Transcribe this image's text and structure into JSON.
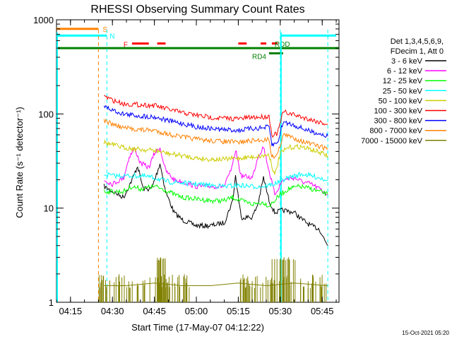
{
  "chart_data": {
    "type": "line",
    "title": "RHESSI Observing Summary Count Rates",
    "xlabel": "Start Time (17-May-07 04:12:22)",
    "ylabel": "Count Rate (s⁻¹ detector⁻¹)",
    "y_scale": "log",
    "ylim": [
      1,
      1000
    ],
    "xlim": [
      "04:10",
      "05:51"
    ],
    "x_ticks": [
      "04:15",
      "04:30",
      "04:45",
      "05:00",
      "05:15",
      "05:30",
      "05:45"
    ],
    "y_ticks": [
      "1",
      "10",
      "100",
      "1000"
    ],
    "grid": false,
    "legend_position": "right",
    "legend_header": [
      "Det 1,3,4,5,6,9,",
      "FDecim 1, Att 0"
    ],
    "timestamp": "15-Oct-2021 05:20",
    "series": [
      {
        "name": "3 - 6 keV",
        "color": "#000000",
        "points": [
          [
            "04:27",
            17
          ],
          [
            "04:30",
            15
          ],
          [
            "04:34",
            13
          ],
          [
            "04:37",
            20
          ],
          [
            "04:39",
            28
          ],
          [
            "04:41",
            16
          ],
          [
            "04:44",
            16
          ],
          [
            "04:46",
            24
          ],
          [
            "04:47",
            30
          ],
          [
            "04:49",
            15
          ],
          [
            "04:52",
            9
          ],
          [
            "04:55",
            7.5
          ],
          [
            "05:00",
            6.5
          ],
          [
            "05:05",
            6.5
          ],
          [
            "05:10",
            7
          ],
          [
            "05:13",
            12
          ],
          [
            "05:14",
            22
          ],
          [
            "05:16",
            8
          ],
          [
            "05:20",
            8
          ],
          [
            "05:22",
            11
          ],
          [
            "05:24",
            21
          ],
          [
            "05:26",
            12
          ],
          [
            "05:28",
            9
          ],
          [
            "05:31",
            9.5
          ],
          [
            "05:35",
            9
          ],
          [
            "05:38",
            7.5
          ],
          [
            "05:41",
            6.5
          ],
          [
            "05:44",
            6
          ],
          [
            "05:46",
            4.5
          ],
          [
            "05:47",
            4
          ]
        ]
      },
      {
        "name": "6 - 12 keV",
        "color": "#ff00ff",
        "points": [
          [
            "04:27",
            20
          ],
          [
            "04:30",
            18
          ],
          [
            "04:34",
            21
          ],
          [
            "04:36",
            35
          ],
          [
            "04:38",
            43
          ],
          [
            "04:40",
            30
          ],
          [
            "04:43",
            27
          ],
          [
            "04:45",
            38
          ],
          [
            "04:47",
            44
          ],
          [
            "04:49",
            25
          ],
          [
            "04:52",
            20
          ],
          [
            "04:55",
            19
          ],
          [
            "05:00",
            17
          ],
          [
            "05:05",
            17
          ],
          [
            "05:10",
            17
          ],
          [
            "05:13",
            28
          ],
          [
            "05:14",
            42
          ],
          [
            "05:16",
            22
          ],
          [
            "05:20",
            21
          ],
          [
            "05:22",
            35
          ],
          [
            "05:24",
            45
          ],
          [
            "05:26",
            25
          ],
          [
            "05:28",
            14
          ],
          [
            "05:31",
            20
          ],
          [
            "05:35",
            21
          ],
          [
            "05:38",
            19
          ],
          [
            "05:41",
            18
          ],
          [
            "05:44",
            16
          ],
          [
            "05:47",
            14
          ]
        ]
      },
      {
        "name": "12 - 25 keV",
        "color": "#00ff00",
        "points": [
          [
            "04:27",
            15
          ],
          [
            "04:30",
            15
          ],
          [
            "04:34",
            15
          ],
          [
            "04:37",
            17
          ],
          [
            "04:40",
            16
          ],
          [
            "04:45",
            17
          ],
          [
            "04:48",
            16
          ],
          [
            "04:52",
            14
          ],
          [
            "04:55",
            13
          ],
          [
            "05:00",
            12.5
          ],
          [
            "05:05",
            12
          ],
          [
            "05:10",
            12
          ],
          [
            "05:13",
            13
          ],
          [
            "05:16",
            12
          ],
          [
            "05:20",
            11
          ],
          [
            "05:24",
            11.5
          ],
          [
            "05:26",
            10.5
          ],
          [
            "05:28",
            12
          ],
          [
            "05:30",
            14
          ],
          [
            "05:33",
            16
          ],
          [
            "05:37",
            17
          ],
          [
            "05:41",
            16
          ],
          [
            "05:44",
            15
          ],
          [
            "05:47",
            14
          ]
        ]
      },
      {
        "name": "25 - 50 keV",
        "color": "#00ffff",
        "points": [
          [
            "04:27",
            23
          ],
          [
            "04:30",
            22
          ],
          [
            "04:34",
            22
          ],
          [
            "04:40",
            22
          ],
          [
            "04:45",
            21
          ],
          [
            "04:50",
            19
          ],
          [
            "04:55",
            18.5
          ],
          [
            "05:00",
            18
          ],
          [
            "05:05",
            17.5
          ],
          [
            "05:10",
            17
          ],
          [
            "05:15",
            17.5
          ],
          [
            "05:20",
            17
          ],
          [
            "05:24",
            17
          ],
          [
            "05:26",
            17.5
          ],
          [
            "05:28",
            18
          ],
          [
            "05:31",
            20
          ],
          [
            "05:35",
            22
          ],
          [
            "05:38",
            23
          ],
          [
            "05:41",
            22
          ],
          [
            "05:44",
            21
          ],
          [
            "05:47",
            20
          ]
        ]
      },
      {
        "name": "50 - 100 keV",
        "color": "#cccc00",
        "points": [
          [
            "04:27",
            50
          ],
          [
            "04:30",
            47
          ],
          [
            "04:34",
            44
          ],
          [
            "04:40",
            42
          ],
          [
            "04:45",
            41
          ],
          [
            "04:50",
            38
          ],
          [
            "04:55",
            36
          ],
          [
            "05:00",
            34
          ],
          [
            "05:05",
            33
          ],
          [
            "05:10",
            33
          ],
          [
            "05:15",
            34
          ],
          [
            "05:20",
            35
          ],
          [
            "05:24",
            36
          ],
          [
            "05:26",
            37
          ],
          [
            "05:28",
            22
          ],
          [
            "05:30",
            38
          ],
          [
            "05:33",
            44
          ],
          [
            "05:37",
            45
          ],
          [
            "05:41",
            42
          ],
          [
            "05:44",
            39
          ],
          [
            "05:47",
            36
          ]
        ]
      },
      {
        "name": "100 - 300 keV",
        "color": "#ff0000",
        "points": [
          [
            "04:27",
            155
          ],
          [
            "04:30",
            140
          ],
          [
            "04:34",
            128
          ],
          [
            "04:40",
            125
          ],
          [
            "04:45",
            123
          ],
          [
            "04:50",
            112
          ],
          [
            "04:55",
            103
          ],
          [
            "05:00",
            97
          ],
          [
            "05:05",
            92
          ],
          [
            "05:10",
            90
          ],
          [
            "05:15",
            89
          ],
          [
            "05:20",
            92
          ],
          [
            "05:24",
            93
          ],
          [
            "05:26",
            95
          ],
          [
            "05:27",
            60
          ],
          [
            "05:29",
            62
          ],
          [
            "05:31",
            105
          ],
          [
            "05:34",
            100
          ],
          [
            "05:38",
            92
          ],
          [
            "05:41",
            87
          ],
          [
            "05:44",
            82
          ],
          [
            "05:47",
            78
          ]
        ]
      },
      {
        "name": "300 - 800 keV",
        "color": "#0000ff",
        "points": [
          [
            "04:27",
            120
          ],
          [
            "04:30",
            110
          ],
          [
            "04:34",
            100
          ],
          [
            "04:40",
            95
          ],
          [
            "04:45",
            93
          ],
          [
            "04:50",
            85
          ],
          [
            "04:55",
            79
          ],
          [
            "05:00",
            73
          ],
          [
            "05:05",
            70
          ],
          [
            "05:10",
            68
          ],
          [
            "05:15",
            67
          ],
          [
            "05:20",
            70
          ],
          [
            "05:24",
            71
          ],
          [
            "05:26",
            73
          ],
          [
            "05:27",
            47
          ],
          [
            "05:29",
            49
          ],
          [
            "05:31",
            82
          ],
          [
            "05:34",
            78
          ],
          [
            "05:38",
            70
          ],
          [
            "05:41",
            65
          ],
          [
            "05:44",
            62
          ],
          [
            "05:47",
            58
          ]
        ]
      },
      {
        "name": "800 - 7000 keV",
        "color": "#ff8000",
        "points": [
          [
            "04:27",
            85
          ],
          [
            "04:30",
            78
          ],
          [
            "04:34",
            71
          ],
          [
            "04:40",
            68
          ],
          [
            "04:45",
            67
          ],
          [
            "04:50",
            61
          ],
          [
            "04:55",
            57
          ],
          [
            "05:00",
            54
          ],
          [
            "05:05",
            52
          ],
          [
            "05:10",
            51
          ],
          [
            "05:15",
            50
          ],
          [
            "05:20",
            52
          ],
          [
            "05:24",
            53
          ],
          [
            "05:26",
            54
          ],
          [
            "05:27",
            35
          ],
          [
            "05:29",
            37
          ],
          [
            "05:31",
            60
          ],
          [
            "05:34",
            57
          ],
          [
            "05:38",
            51
          ],
          [
            "05:41",
            48
          ],
          [
            "05:44",
            45
          ],
          [
            "05:47",
            43
          ]
        ]
      },
      {
        "name": "7000 - 15000 keV",
        "color": "#808000",
        "points": [
          [
            "04:27",
            1.5
          ],
          [
            "04:35",
            1.5
          ],
          [
            "04:45",
            1.6
          ],
          [
            "04:55",
            1.5
          ],
          [
            "05:05",
            1.5
          ],
          [
            "05:15",
            1.6
          ],
          [
            "05:25",
            1.5
          ],
          [
            "05:35",
            1.6
          ],
          [
            "05:47",
            1.5
          ]
        ]
      }
    ],
    "flag_bars": [
      {
        "label": "S",
        "color": "#ff8000",
        "y": 800,
        "segments": [
          [
            "04:10",
            "04:25"
          ]
        ]
      },
      {
        "label": "N",
        "color": "#00ffff",
        "y": 680,
        "segments": [
          [
            "04:10",
            "04:28"
          ],
          [
            "05:30",
            "05:50"
          ]
        ]
      },
      {
        "label": "F",
        "color": "#ff0000",
        "y": 560,
        "segments": [
          [
            "04:37",
            "04:43"
          ],
          [
            "04:46",
            "04:49"
          ],
          [
            "05:15",
            "05:18"
          ],
          [
            "05:23",
            "05:25"
          ],
          [
            "05:27",
            "05:29"
          ]
        ]
      },
      {
        "label": "RDD",
        "color": "#008000",
        "y": 500,
        "segments": [
          [
            "04:10",
            "05:51"
          ]
        ]
      },
      {
        "label": "RD4",
        "color": "#008000",
        "y": 440,
        "segments": [
          [
            "05:26",
            "05:31"
          ]
        ]
      }
    ],
    "vertical_lines": [
      {
        "x": "04:25",
        "color": "#ff8000"
      },
      {
        "x": "04:28",
        "color": "#00ffff"
      },
      {
        "x": "05:30",
        "color": "#00ffff"
      },
      {
        "x": "05:47",
        "color": "#00ffff"
      }
    ],
    "saa_lines": [
      {
        "x": "04:10",
        "color": "#00ffff"
      },
      {
        "x": "05:30",
        "color": "#00ffff"
      }
    ]
  }
}
